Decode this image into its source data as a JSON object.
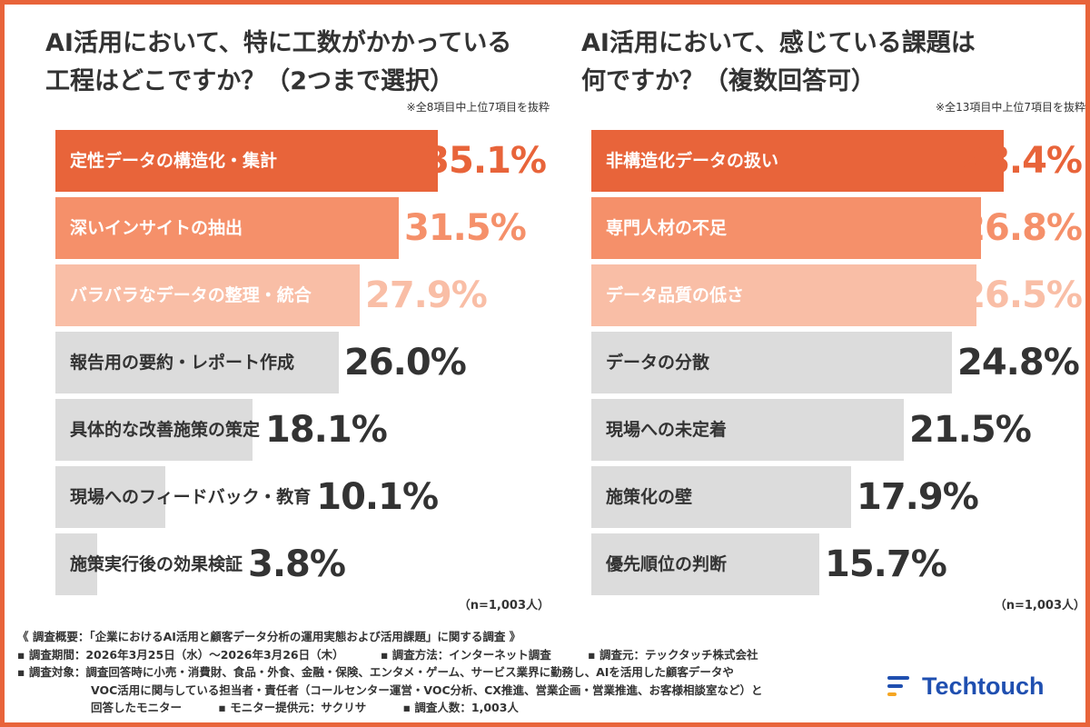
{
  "colors": {
    "frame": "#e8643a",
    "rank1": "#e8643a",
    "rank2": "#f5906a",
    "rank3": "#f9bea6",
    "other": "#dcdcdc",
    "other_value": "#333333"
  },
  "chart_data": [
    {
      "type": "bar",
      "orientation": "horizontal",
      "title_lines": [
        "AI活用において、特に工数がかかっている",
        "工程はどこですか？（2つまで選択）"
      ],
      "note": "※全8項目中上位7項目を抜粋",
      "n_note": "（n=1,003人）",
      "categories": [
        "定性データの構造化・集計",
        "深いインサイトの抽出",
        "バラバラなデータの整理・統合",
        "報告用の要約・レポート作成",
        "具体的な改善施策の策定",
        "現場へのフィードバック・教育",
        "施策実行後の効果検証"
      ],
      "values": [
        35.1,
        31.5,
        27.9,
        26.0,
        18.1,
        10.1,
        3.8
      ],
      "value_labels": [
        "35.1%",
        "31.5%",
        "27.9%",
        "26.0%",
        "18.1%",
        "10.1%",
        "3.8%"
      ],
      "xlim": [
        0,
        40
      ]
    },
    {
      "type": "bar",
      "orientation": "horizontal",
      "title_lines": [
        "AI活用において、感じている課題は",
        "何ですか？（複数回答可）"
      ],
      "note": "※全13項目中上位7項目を抜粋",
      "n_note": "（n=1,003人）",
      "categories": [
        "非構造化データの扱い",
        "専門人材の不足",
        "データ品質の低さ",
        "データの分散",
        "現場への未定着",
        "施策化の壁",
        "優先順位の判断"
      ],
      "values": [
        28.4,
        26.8,
        26.5,
        24.8,
        21.5,
        17.9,
        15.7
      ],
      "value_labels": [
        "28.4%",
        "26.8%",
        "26.5%",
        "24.8%",
        "21.5%",
        "17.9%",
        "15.7%"
      ],
      "xlim": [
        0,
        30
      ]
    }
  ],
  "footer": {
    "summary": "《 調査概要：「企業におけるAI活用と顧客データ分析の運用実態および活用課題」に関する調査 》",
    "period": "▪ 調査期間：2026年3月25日（水）〜2026年3月26日（木）",
    "method": "▪ 調査方法：インターネット調査",
    "source": "▪ 調査元：テックタッチ株式会社",
    "target_1": "▪ 調査対象：調査回答時に小売・消費財、食品・外食、金融・保険、エンタメ・ゲーム、サービス業界に勤務し、AIを活用した顧客データや",
    "target_2": "VOC活用に関与している担当者・責任者（コールセンター運営・VOC分析、CX推進、営業企画・営業推進、お客様相談室など）と",
    "target_3": "回答したモニター",
    "provider": "▪ モニター提供元：サクリサ",
    "count": "▪ 調査人数：1,003人"
  },
  "logo": {
    "text": "Techtouch",
    "icon": "techtouch-logo-icon"
  }
}
